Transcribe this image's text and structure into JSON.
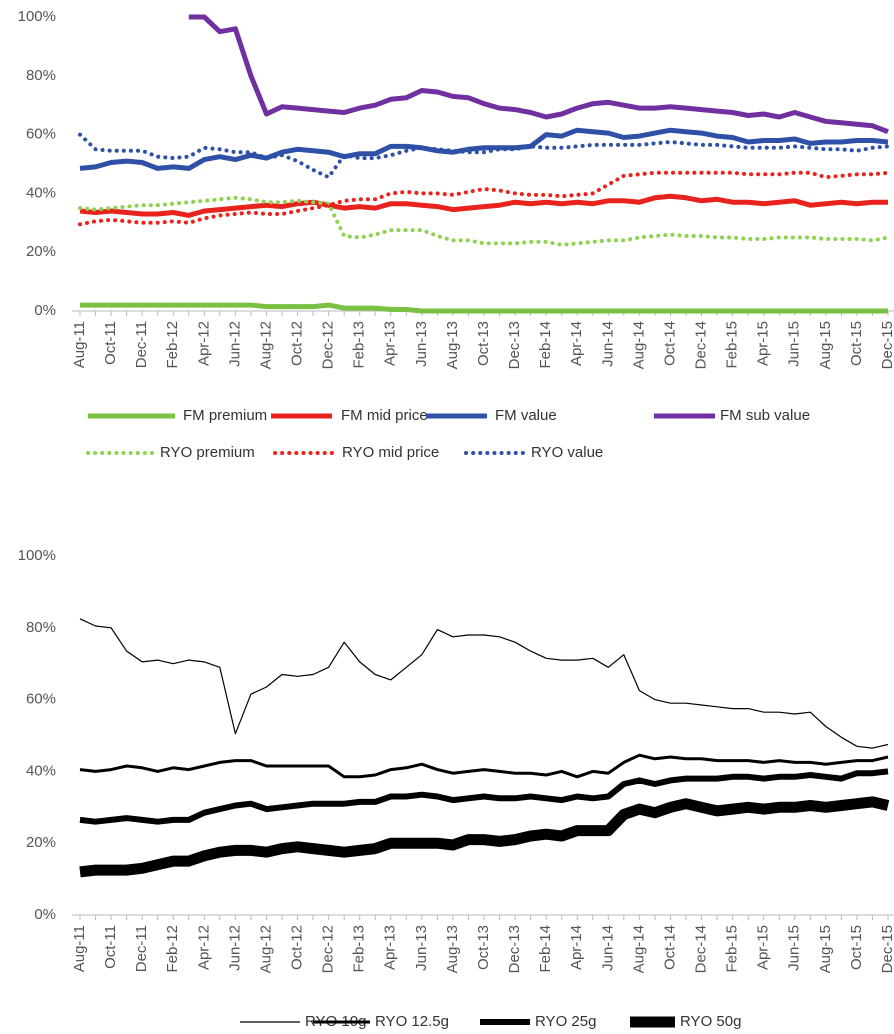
{
  "chart_data": [
    {
      "type": "line",
      "legend": "bottom",
      "categories": [
        "Aug-11",
        null,
        "Oct-11",
        null,
        "Dec-11",
        null,
        "Feb-12",
        null,
        "Apr-12",
        null,
        "Jun-12",
        null,
        "Aug-12",
        null,
        "Oct-12",
        null,
        "Dec-12",
        null,
        "Feb-13",
        null,
        "Apr-13",
        null,
        "Jun-13",
        null,
        "Aug-13",
        null,
        "Oct-13",
        null,
        "Dec-13",
        null,
        "Feb-14",
        null,
        "Apr-14",
        null,
        "Jun-14",
        null,
        "Aug-14",
        null,
        "Oct-14",
        null,
        "Dec-14",
        null,
        "Feb-15",
        null,
        "Apr-15",
        null,
        "Jun-15",
        null,
        "Aug-15",
        null,
        "Oct-15",
        null,
        "Dec-15"
      ],
      "ylim": [
        0,
        100
      ],
      "yticks": [
        {
          "value": 0,
          "label": "0%"
        },
        {
          "value": 20,
          "label": "20%"
        },
        {
          "value": 40,
          "label": "40%"
        },
        {
          "value": 60,
          "label": "60%"
        },
        {
          "value": 80,
          "label": "80%"
        },
        {
          "value": 100,
          "label": "100%"
        }
      ],
      "series": [
        {
          "name": "FM premium",
          "color": "#7ac143",
          "linestyle": "solid",
          "values": [
            2,
            2,
            2,
            2,
            2,
            2,
            2,
            2,
            2,
            2,
            2,
            2,
            1.5,
            1.5,
            1.5,
            1.5,
            2,
            1,
            1,
            1,
            0.5,
            0.5,
            0,
            0,
            0,
            0,
            0,
            0,
            0,
            0,
            0,
            0,
            0,
            0,
            0,
            0,
            0,
            0,
            0,
            0,
            0,
            0,
            0,
            0,
            0,
            0,
            0,
            0,
            0,
            0,
            0,
            0,
            0
          ]
        },
        {
          "name": "FM mid price",
          "color": "#e8231d",
          "linestyle": "solid",
          "values": [
            34,
            33.5,
            34,
            33.5,
            33,
            33,
            33.5,
            32.5,
            34,
            34.5,
            35,
            35.5,
            36,
            35.5,
            36.5,
            37,
            36,
            35,
            35.5,
            35,
            36.5,
            36.5,
            36,
            35.5,
            34.5,
            35,
            35.5,
            36,
            37,
            36.5,
            37,
            36.5,
            37,
            36.5,
            37.5,
            37.5,
            37,
            38.5,
            39,
            38.5,
            37.5,
            38,
            37,
            37,
            36.5,
            37,
            37.5,
            36,
            36.5,
            37,
            36.5,
            37,
            37
          ]
        },
        {
          "name": "FM value",
          "color": "#2e50a7",
          "linestyle": "solid",
          "values": [
            48.5,
            49,
            50.5,
            51,
            50.5,
            48.5,
            49,
            48.5,
            51.5,
            52.5,
            51.5,
            53,
            52,
            54,
            55,
            54.5,
            54,
            52.5,
            53.5,
            53.5,
            56,
            56,
            55.5,
            54.5,
            54,
            55,
            55.5,
            55.5,
            55.5,
            56,
            60,
            59.5,
            61.5,
            61,
            60.5,
            59,
            59.5,
            60.5,
            61.5,
            61,
            60.5,
            59.5,
            59,
            57.5,
            58,
            58,
            58.5,
            57,
            57.5,
            57.5,
            58,
            58,
            57.5
          ]
        },
        {
          "name": "FM sub value",
          "color": "#7030a0",
          "linestyle": "solid",
          "values": [
            null,
            null,
            null,
            null,
            null,
            null,
            null,
            100,
            100,
            95,
            96,
            80,
            67,
            69.5,
            69,
            68.5,
            68,
            67.5,
            69,
            70,
            72,
            72.5,
            75,
            74.5,
            73,
            72.5,
            70.5,
            69,
            68.5,
            67.5,
            66,
            67,
            69,
            70.5,
            71,
            70,
            69,
            69,
            69.5,
            69,
            68.5,
            68,
            67.5,
            66.5,
            67,
            66,
            67.5,
            66,
            64.5,
            64,
            63.5,
            63,
            61
          ]
        },
        {
          "name": "RYO premium",
          "color": "#8fd150",
          "linestyle": "dotted",
          "values": [
            35,
            34.5,
            35,
            35.5,
            36,
            36,
            36.5,
            37,
            37.5,
            38,
            38.5,
            38,
            37,
            37,
            37.5,
            37,
            36.5,
            25.5,
            25,
            26,
            27.5,
            27.5,
            27.5,
            25.5,
            24,
            24,
            23,
            23,
            23,
            23.5,
            23.5,
            22.5,
            23,
            23.5,
            24,
            24,
            25,
            25.5,
            26,
            25.5,
            25.5,
            25,
            25,
            24.5,
            24.5,
            25,
            25,
            25,
            24.5,
            24.5,
            24.5,
            24,
            25
          ]
        },
        {
          "name": "RYO mid price",
          "color": "#e8231d",
          "linestyle": "dotted",
          "values": [
            29.5,
            30.5,
            31,
            30.5,
            30,
            30,
            30.5,
            30,
            31.5,
            32.5,
            33,
            33.5,
            33,
            33,
            34,
            35,
            36,
            37.5,
            38,
            38,
            40,
            40.5,
            40,
            40,
            39.5,
            40.5,
            41.5,
            41,
            40,
            39.5,
            39.5,
            39,
            39.5,
            40,
            43,
            46,
            46.5,
            47,
            47,
            47,
            47,
            47,
            47,
            46.5,
            46.5,
            46.5,
            47,
            47,
            45.5,
            46,
            46.5,
            46.5,
            47
          ]
        },
        {
          "name": "RYO value",
          "color": "#2e50a7",
          "linestyle": "dotted",
          "values": [
            60,
            55,
            54.5,
            54.5,
            54.5,
            52.5,
            52,
            52.5,
            55.5,
            55,
            54,
            54,
            52,
            53,
            51,
            48,
            45.5,
            53,
            52,
            52,
            53,
            54.5,
            55.5,
            55,
            54.5,
            54,
            54,
            55,
            55,
            56,
            55.5,
            55.5,
            56,
            56.5,
            56.5,
            56.5,
            56.5,
            57,
            57.5,
            57,
            56.5,
            56.5,
            56,
            55.5,
            55.5,
            55.5,
            56,
            55.5,
            55,
            55,
            54.5,
            55.5,
            56
          ]
        }
      ]
    },
    {
      "type": "line",
      "legend": "bottom",
      "categories": [
        "Aug-11",
        null,
        "Oct-11",
        null,
        "Dec-11",
        null,
        "Feb-12",
        null,
        "Apr-12",
        null,
        "Jun-12",
        null,
        "Aug-12",
        null,
        "Oct-12",
        null,
        "Dec-12",
        null,
        "Feb-13",
        null,
        "Apr-13",
        null,
        "Jun-13",
        null,
        "Aug-13",
        null,
        "Oct-13",
        null,
        "Dec-13",
        null,
        "Feb-14",
        null,
        "Apr-14",
        null,
        "Jun-14",
        null,
        "Aug-14",
        null,
        "Oct-14",
        null,
        "Dec-14",
        null,
        "Feb-15",
        null,
        "Apr-15",
        null,
        "Jun-15",
        null,
        "Aug-15",
        null,
        "Oct-15",
        null,
        "Dec-15"
      ],
      "ylim": [
        0,
        100
      ],
      "yticks": [
        {
          "value": 0,
          "label": "0%"
        },
        {
          "value": 20,
          "label": "20%"
        },
        {
          "value": 40,
          "label": "40%"
        },
        {
          "value": 60,
          "label": "60%"
        },
        {
          "value": 80,
          "label": "80%"
        },
        {
          "value": 100,
          "label": "100%"
        }
      ],
      "series": [
        {
          "name": "RYO 10g",
          "color": "#000000",
          "linestyle": "solid",
          "values": [
            82.5,
            80.5,
            80,
            73.5,
            70.5,
            71,
            70,
            71,
            70.5,
            69,
            50.5,
            61.5,
            63.5,
            67,
            66.5,
            67,
            69,
            76,
            70.5,
            67,
            65.5,
            69,
            72.5,
            79.5,
            77.5,
            78,
            78,
            77.5,
            76,
            73.5,
            71.5,
            71,
            71,
            71.5,
            69,
            72.5,
            62.5,
            60,
            59,
            59,
            58.5,
            58,
            57.5,
            57.5,
            56.5,
            56.5,
            56,
            56.5,
            52.5,
            49.5,
            47,
            46.5,
            47.5
          ]
        },
        {
          "name": "RYO 12.5g",
          "color": "#000000",
          "linestyle": "solid",
          "values": [
            40.5,
            40,
            40.5,
            41.5,
            41,
            40,
            41,
            40.5,
            41.5,
            42.5,
            43,
            43,
            41.5,
            41.5,
            41.5,
            41.5,
            41.5,
            38.5,
            38.5,
            39,
            40.5,
            41,
            42,
            40.5,
            39.5,
            40,
            40.5,
            40,
            39.5,
            39.5,
            39,
            40,
            38.5,
            40,
            39.5,
            42.5,
            44.5,
            43.5,
            44,
            43.5,
            43.5,
            43,
            43,
            43,
            42.5,
            43,
            42.5,
            42.5,
            42,
            42.5,
            43,
            43,
            44
          ]
        },
        {
          "name": "RYO 25g",
          "color": "#000000",
          "linestyle": "solid",
          "values": [
            26.5,
            26,
            26.5,
            27,
            26.5,
            26,
            26.5,
            26.5,
            28.5,
            29.5,
            30.5,
            31,
            29.5,
            30,
            30.5,
            31,
            31,
            31,
            31.5,
            31.5,
            33,
            33,
            33.5,
            33,
            32,
            32.5,
            33,
            32.5,
            32.5,
            33,
            32.5,
            32,
            33,
            32.5,
            33,
            36.5,
            37.5,
            36.5,
            37.5,
            38,
            38,
            38,
            38.5,
            38.5,
            38,
            38.5,
            38.5,
            39,
            38.5,
            38,
            39.5,
            39.5,
            40
          ]
        },
        {
          "name": "RYO 50g",
          "color": "#000000",
          "linestyle": "solid",
          "values": [
            12,
            12.5,
            12.5,
            12.5,
            13,
            14,
            15,
            15,
            16.5,
            17.5,
            18,
            18,
            17.5,
            18.5,
            19,
            18.5,
            18,
            17.5,
            18,
            18.5,
            20,
            20,
            20,
            20,
            19.5,
            21,
            21,
            20.5,
            21,
            22,
            22.5,
            22,
            23.5,
            23.5,
            23.5,
            28,
            29.5,
            28.5,
            30,
            31,
            30,
            29,
            29.5,
            30,
            29.5,
            30,
            30,
            30.5,
            30,
            30.5,
            31,
            31.5,
            30.5
          ]
        }
      ]
    }
  ]
}
